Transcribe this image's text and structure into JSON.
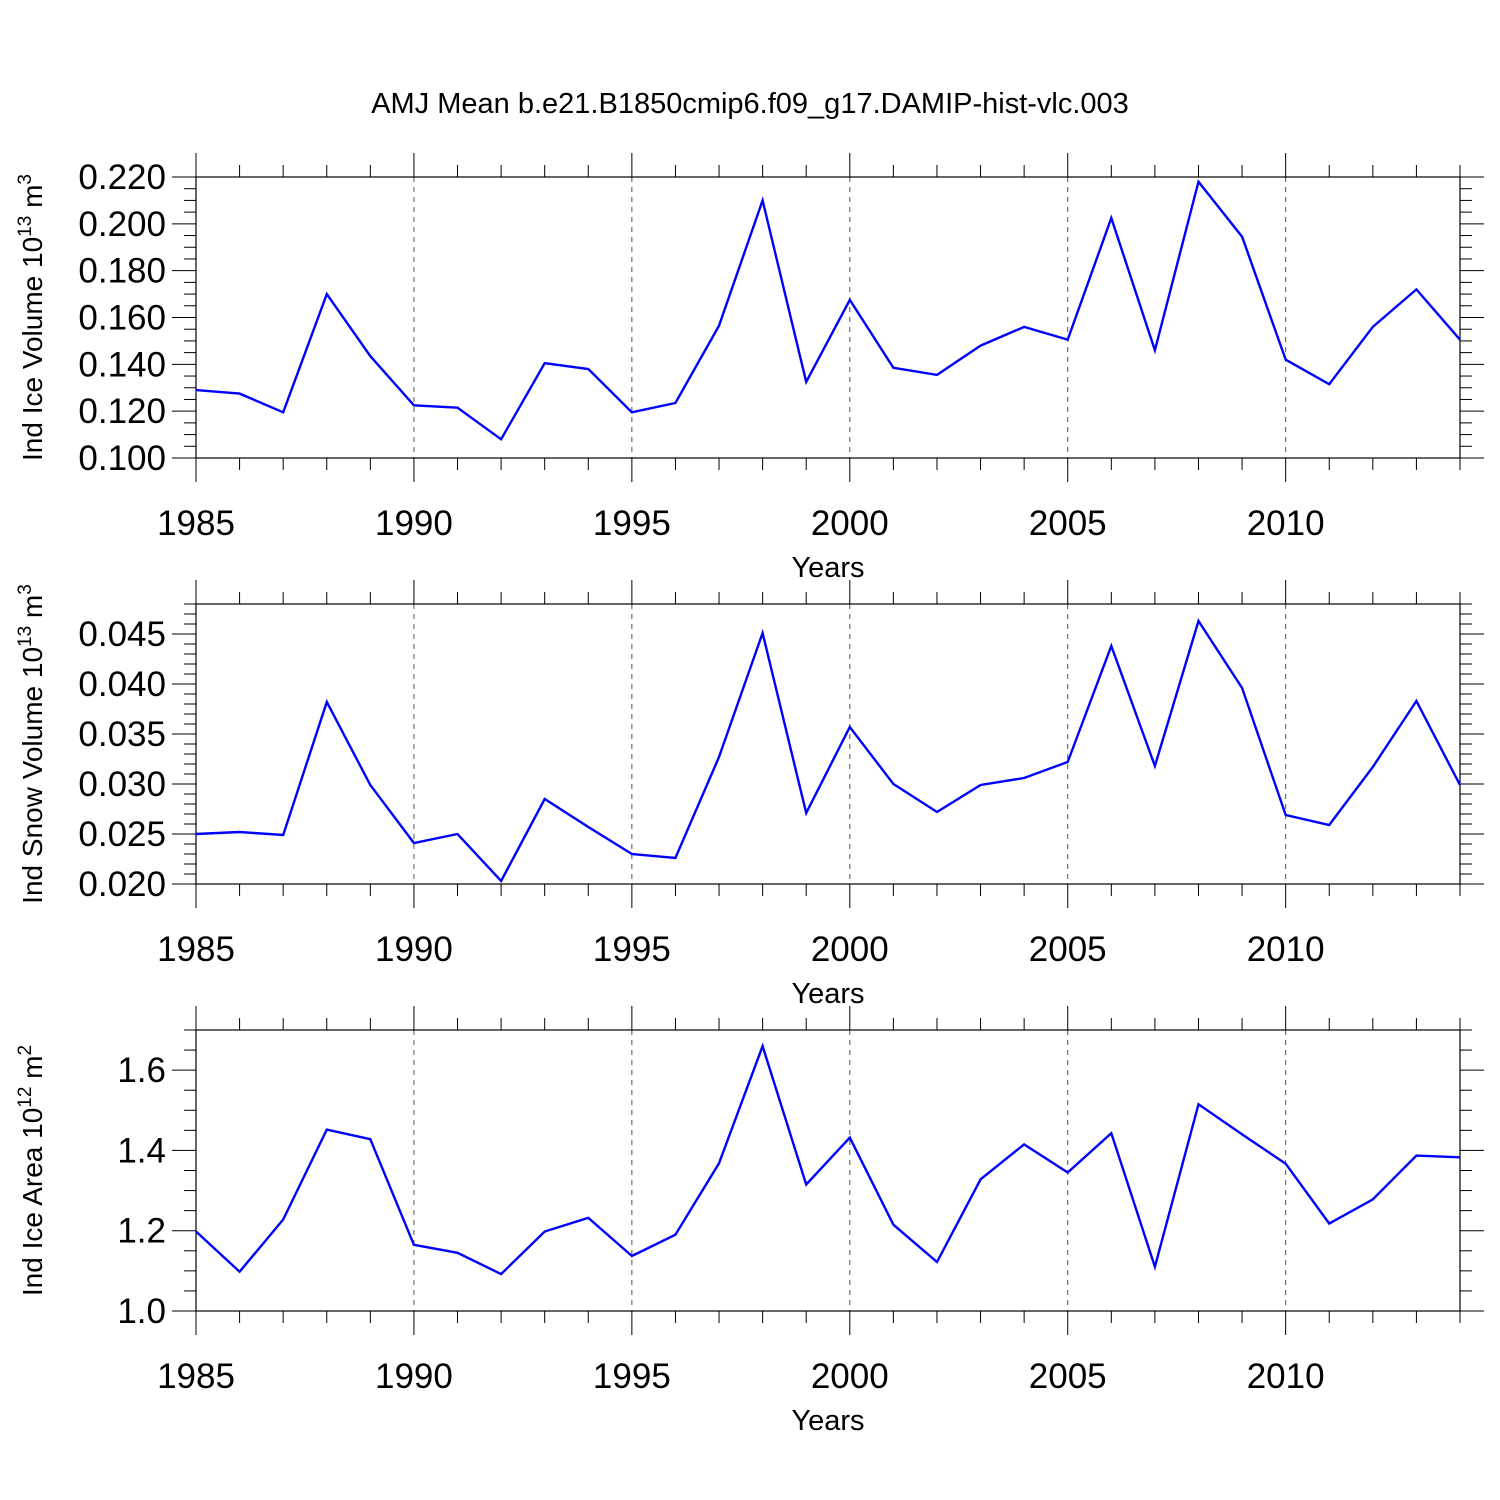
{
  "chart_data": {
    "title": "AMJ Mean b.e21.B1850cmip6.f09_g17.DAMIP-hist-vlc.003",
    "panels": [
      {
        "type": "line",
        "ylabel": {
          "text": "Ind Ice Volume 10",
          "exponent": "13",
          "unit": "m",
          "unit_exponent": "3"
        },
        "xlabel": "Years",
        "xlim": [
          1985,
          2014
        ],
        "ylim": [
          0.1,
          0.22
        ],
        "yticks": [
          0.1,
          0.12,
          0.14,
          0.16,
          0.18,
          0.2,
          0.22
        ],
        "ytick_labels": [
          "0.100",
          "0.120",
          "0.140",
          "0.160",
          "0.180",
          "0.200",
          "0.220"
        ],
        "yminor_step": 0.005,
        "xticks": [
          1985,
          1990,
          1995,
          2000,
          2005,
          2010
        ],
        "xtick_labels": [
          "1985",
          "1990",
          "1995",
          "2000",
          "2005",
          "2010"
        ],
        "grid": "vertical-dashed",
        "series": [
          {
            "name": "Ind Ice Volume",
            "color": "#0000ff",
            "x": [
              1985,
              1986,
              1987,
              1988,
              1989,
              1990,
              1991,
              1992,
              1993,
              1994,
              1995,
              1996,
              1997,
              1998,
              1999,
              2000,
              2001,
              2002,
              2003,
              2004,
              2005,
              2006,
              2007,
              2008,
              2009,
              2010,
              2011,
              2012,
              2013,
              2014
            ],
            "values": [
              0.129,
              0.1275,
              0.1195,
              0.17,
              0.1435,
              0.1225,
              0.1215,
              0.108,
              0.1405,
              0.138,
              0.1195,
              0.1235,
              0.1565,
              0.21,
              0.1325,
              0.1675,
              0.1385,
              0.1355,
              0.148,
              0.156,
              0.1505,
              0.2025,
              0.146,
              0.218,
              0.1945,
              0.142,
              0.1315,
              0.156,
              0.172,
              0.1505
            ]
          }
        ]
      },
      {
        "type": "line",
        "ylabel": {
          "text": "Ind Snow Volume 10",
          "exponent": "13",
          "unit": "m",
          "unit_exponent": "3"
        },
        "xlabel": "Years",
        "xlim": [
          1985,
          2014
        ],
        "ylim": [
          0.02,
          0.048
        ],
        "yticks": [
          0.02,
          0.025,
          0.03,
          0.035,
          0.04,
          0.045
        ],
        "ytick_labels": [
          "0.020",
          "0.025",
          "0.030",
          "0.035",
          "0.040",
          "0.045"
        ],
        "yminor_step": 0.001,
        "xticks": [
          1985,
          1990,
          1995,
          2000,
          2005,
          2010
        ],
        "xtick_labels": [
          "1985",
          "1990",
          "1995",
          "2000",
          "2005",
          "2010"
        ],
        "grid": "vertical-dashed",
        "series": [
          {
            "name": "Ind Snow Volume",
            "color": "#0000ff",
            "x": [
              1985,
              1986,
              1987,
              1988,
              1989,
              1990,
              1991,
              1992,
              1993,
              1994,
              1995,
              1996,
              1997,
              1998,
              1999,
              2000,
              2001,
              2002,
              2003,
              2004,
              2005,
              2006,
              2007,
              2008,
              2009,
              2010,
              2011,
              2012,
              2013,
              2014
            ],
            "values": [
              0.025,
              0.0252,
              0.0249,
              0.0382,
              0.0299,
              0.0241,
              0.025,
              0.0203,
              0.0285,
              0.0257,
              0.023,
              0.0226,
              0.0327,
              0.0451,
              0.0271,
              0.0357,
              0.03,
              0.0272,
              0.0299,
              0.0306,
              0.0322,
              0.0438,
              0.0318,
              0.0463,
              0.0396,
              0.0269,
              0.0259,
              0.0317,
              0.0383,
              0.0299
            ]
          }
        ]
      },
      {
        "type": "line",
        "ylabel": {
          "text": "Ind Ice Area 10",
          "exponent": "12",
          "unit": "m",
          "unit_exponent": "2"
        },
        "xlabel": "Years",
        "xlim": [
          1985,
          2014
        ],
        "ylim": [
          1.0,
          1.7
        ],
        "yticks": [
          1.0,
          1.2,
          1.4,
          1.6
        ],
        "ytick_labels": [
          "1.0",
          "1.2",
          "1.4",
          "1.6"
        ],
        "yminor_step": 0.05,
        "xticks": [
          1985,
          1990,
          1995,
          2000,
          2005,
          2010
        ],
        "xtick_labels": [
          "1985",
          "1990",
          "1995",
          "2000",
          "2005",
          "2010"
        ],
        "grid": "vertical-dashed",
        "series": [
          {
            "name": "Ind Ice Area",
            "color": "#0000ff",
            "x": [
              1985,
              1986,
              1987,
              1988,
              1989,
              1990,
              1991,
              1992,
              1993,
              1994,
              1995,
              1996,
              1997,
              1998,
              1999,
              2000,
              2001,
              2002,
              2003,
              2004,
              2005,
              2006,
              2007,
              2008,
              2009,
              2010,
              2011,
              2012,
              2013,
              2014
            ],
            "values": [
              1.198,
              1.098,
              1.228,
              1.452,
              1.428,
              1.165,
              1.145,
              1.092,
              1.198,
              1.232,
              1.137,
              1.19,
              1.368,
              1.66,
              1.315,
              1.432,
              1.215,
              1.122,
              1.328,
              1.415,
              1.345,
              1.443,
              1.11,
              1.515,
              1.44,
              1.367,
              1.218,
              1.278,
              1.387,
              1.383
            ]
          }
        ]
      }
    ]
  }
}
